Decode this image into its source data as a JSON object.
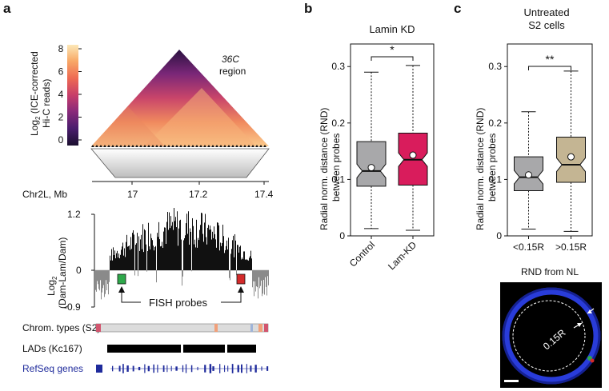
{
  "panel_a": {
    "label": "a",
    "colorbar": {
      "title_line1": "Log2 (ICE-corrected",
      "title_line2": "Hi-C reads)",
      "ticks": [
        "8",
        "6",
        "4",
        "2",
        "0"
      ],
      "colors": [
        "#1a0f2e",
        "#4a1d6e",
        "#8a2a7a",
        "#c73e6a",
        "#ee6b52",
        "#f8a968",
        "#fce8b8"
      ]
    },
    "heatmap_label_region_italic": "36C",
    "heatmap_label_region": "region",
    "genome_axis": {
      "label": "Chr2L, Mb",
      "ticks": [
        "17",
        "17.2",
        "17.4"
      ]
    },
    "damid": {
      "ylabel_line1": "Log2",
      "ylabel_line2": "(Dam-Lam/Dam)",
      "ticks": [
        "1.2",
        "0",
        "-0.9"
      ],
      "fish_label": "FISH probes",
      "probe_colors": [
        "#2ea84a",
        "#d42a2a"
      ]
    },
    "tracks": {
      "chrom_types": "Chrom. types (S2)",
      "lads": "LADs (Kc167)",
      "refseq": "RefSeq genes"
    }
  },
  "panel_b": {
    "label": "b",
    "title": "Lamin KD",
    "significance": "*",
    "ylabel_line1": "Radial norm. distance (RND)",
    "ylabel_line2": "between probes",
    "yticks": [
      "0",
      "0.1",
      "0.2",
      "0.3"
    ],
    "categories": [
      "Control",
      "Lam-KD"
    ],
    "colors": [
      "#a8a8aa",
      "#d91c5c"
    ]
  },
  "panel_c": {
    "label": "c",
    "title_line1": "Untreated",
    "title_line2": "S2 cells",
    "significance": "**",
    "ylabel_line1": "Radial norm. distance (RND)",
    "ylabel_line2": "between probes",
    "yticks": [
      "0",
      "0.1",
      "0.2",
      "0.3"
    ],
    "categories": [
      "<0.15R",
      ">0.15R"
    ],
    "xlabel": "RND from NL",
    "colors": [
      "#a8a8aa",
      "#c4b593"
    ],
    "micrograph_label": "0.15R"
  },
  "chart_data": [
    {
      "type": "box",
      "title": "Lamin KD",
      "ylabel": "Radial norm. distance (RND) between probes",
      "ylim": [
        0,
        0.34
      ],
      "categories": [
        "Control",
        "Lam-KD"
      ],
      "series": [
        {
          "name": "Control",
          "whisker_low": 0.013,
          "q1": 0.088,
          "median": 0.115,
          "q3": 0.167,
          "whisker_high": 0.29,
          "mean": 0.121
        },
        {
          "name": "Lam-KD",
          "whisker_low": 0.01,
          "q1": 0.09,
          "median": 0.135,
          "q3": 0.182,
          "whisker_high": 0.302,
          "mean": 0.143
        }
      ]
    },
    {
      "type": "box",
      "title": "Untreated S2 cells",
      "xlabel": "RND from NL",
      "ylabel": "Radial norm. distance (RND) between probes",
      "ylim": [
        0,
        0.34
      ],
      "categories": [
        "<0.15R",
        ">0.15R"
      ],
      "series": [
        {
          "name": "<0.15R",
          "whisker_low": 0.012,
          "q1": 0.08,
          "median": 0.104,
          "q3": 0.14,
          "whisker_high": 0.22,
          "mean": 0.108
        },
        {
          "name": ">0.15R",
          "whisker_low": 0.008,
          "q1": 0.095,
          "median": 0.126,
          "q3": 0.175,
          "whisker_high": 0.292,
          "mean": 0.14
        }
      ]
    }
  ]
}
